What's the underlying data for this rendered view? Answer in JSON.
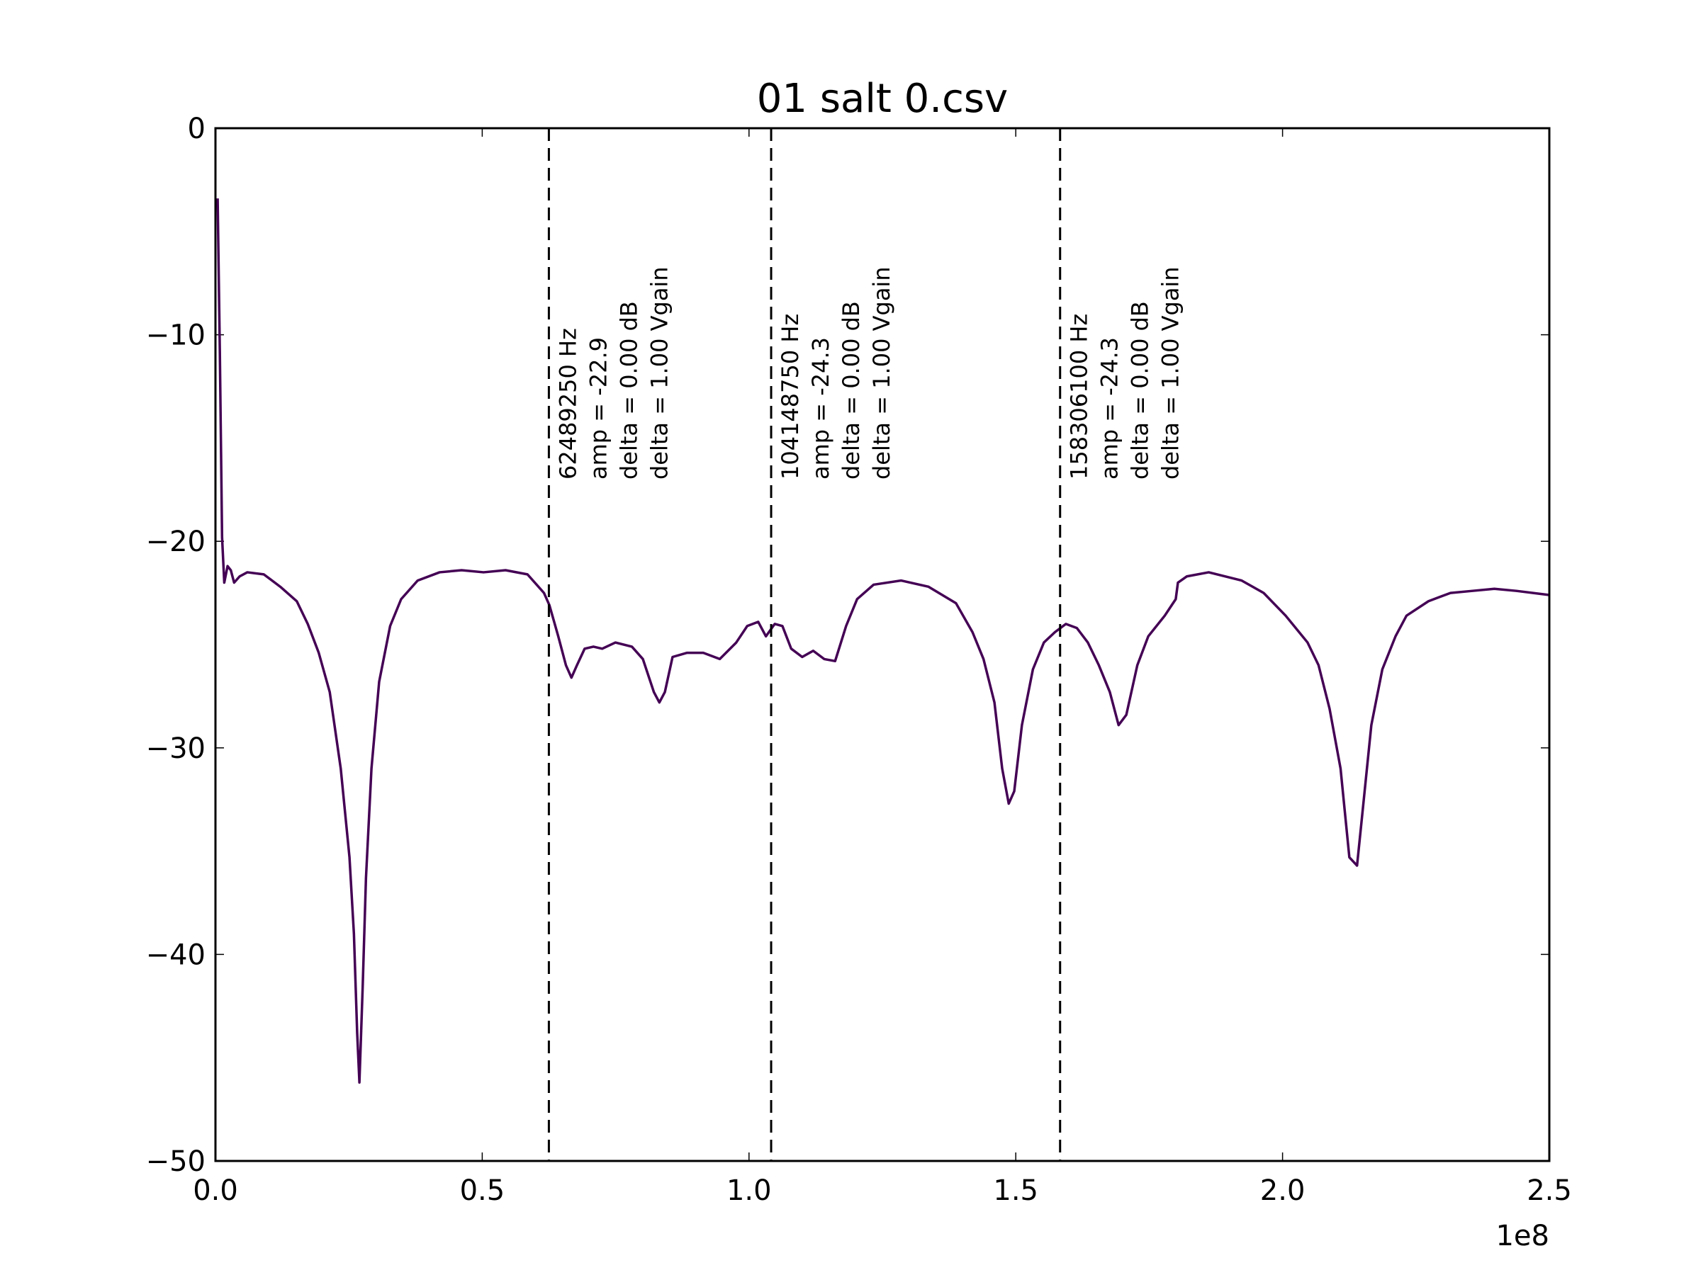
{
  "chart_data": {
    "type": "line",
    "title": "01 salt 0.csv",
    "x": [
      410000,
      820000,
      1240000,
      1650000,
      2270000,
      2880000,
      3500000,
      4530000,
      5970000,
      9060000,
      12150000,
      15240000,
      17300000,
      19360000,
      21420000,
      23480000,
      25120000,
      25950000,
      26560000,
      26980000,
      27590000,
      28210000,
      29240000,
      30680000,
      32740000,
      34800000,
      37890000,
      42010000,
      46130000,
      50250000,
      54370000,
      58480000,
      61570000,
      62600000,
      64250000,
      65690000,
      66720000,
      67750000,
      69190000,
      70840000,
      72490000,
      74960000,
      78050000,
      80110000,
      82170000,
      83200000,
      84230000,
      85670000,
      88340000,
      91430000,
      94520000,
      97610000,
      99670000,
      101730000,
      103170000,
      104820000,
      106260000,
      107910000,
      109970000,
      112030000,
      114090000,
      116140000,
      118200000,
      120260000,
      123350000,
      128500000,
      133650000,
      138800000,
      141890000,
      143950000,
      146000000,
      147450000,
      148680000,
      149710000,
      151150000,
      153210000,
      155270000,
      157330000,
      159390000,
      161450000,
      163510000,
      165570000,
      167630000,
      169270000,
      170720000,
      172780000,
      174830000,
      177920000,
      179980000,
      180390000,
      182040000,
      186160000,
      192340000,
      196460000,
      200580000,
      204690000,
      206750000,
      208810000,
      210870000,
      212520000,
      213960000,
      214990000,
      216640000,
      218700000,
      221170000,
      223230000,
      227350000,
      231470000,
      235580000,
      239700000,
      243820000,
      250000000
    ],
    "series": [
      {
        "color": "#440154",
        "values": [
          -3.4,
          -10.8,
          -19.8,
          -22.0,
          -21.2,
          -21.4,
          -22.0,
          -21.7,
          -21.5,
          -21.6,
          -22.2,
          -22.9,
          -24.0,
          -25.4,
          -27.3,
          -31.0,
          -35.3,
          -39.0,
          -43.8,
          -46.2,
          -41.6,
          -36.3,
          -31.0,
          -26.8,
          -24.1,
          -22.8,
          -21.9,
          -21.5,
          -21.4,
          -21.5,
          -21.4,
          -21.6,
          -22.5,
          -23.1,
          -24.6,
          -26.0,
          -26.6,
          -26.0,
          -25.2,
          -25.1,
          -25.2,
          -24.9,
          -25.1,
          -25.7,
          -27.3,
          -27.8,
          -27.3,
          -25.6,
          -25.4,
          -25.4,
          -25.7,
          -24.9,
          -24.1,
          -23.9,
          -24.6,
          -24.0,
          -24.1,
          -25.2,
          -25.6,
          -25.3,
          -25.7,
          -25.8,
          -24.1,
          -22.8,
          -22.1,
          -21.9,
          -22.2,
          -23.0,
          -24.4,
          -25.7,
          -27.8,
          -31.0,
          -32.7,
          -32.1,
          -28.9,
          -26.2,
          -24.9,
          -24.4,
          -24.0,
          -24.2,
          -24.9,
          -26.0,
          -27.3,
          -28.9,
          -28.4,
          -26.0,
          -24.6,
          -23.6,
          -22.8,
          -22.0,
          -21.7,
          -21.5,
          -21.9,
          -22.5,
          -23.6,
          -24.9,
          -26.0,
          -28.1,
          -31.0,
          -35.3,
          -35.7,
          -33.1,
          -28.9,
          -26.2,
          -24.6,
          -23.6,
          -22.9,
          -22.5,
          -22.4,
          -22.3,
          -22.4,
          -22.6
        ]
      }
    ],
    "xlim": [
      0,
      250000000
    ],
    "xticks": [
      {
        "value": 0,
        "label": "0.0"
      },
      {
        "value": 50000000,
        "label": "0.5"
      },
      {
        "value": 100000000,
        "label": "1.0"
      },
      {
        "value": 150000000,
        "label": "1.5"
      },
      {
        "value": 200000000,
        "label": "2.0"
      },
      {
        "value": 250000000,
        "label": "2.5"
      }
    ],
    "x_offset_label": "1e8",
    "ylim": [
      -50,
      0
    ],
    "yticks": [
      {
        "value": -50,
        "label": "−50"
      },
      {
        "value": -40,
        "label": "−40"
      },
      {
        "value": -30,
        "label": "−30"
      },
      {
        "value": -20,
        "label": "−20"
      },
      {
        "value": -10,
        "label": "−10"
      },
      0
    ],
    "annotations": [
      {
        "x": 62489250,
        "lines": [
          "62489250 Hz",
          "amp = -22.9",
          "delta = 0.00 dB",
          "delta = 1.00 Vgain"
        ]
      },
      {
        "x": 104148750,
        "lines": [
          "104148750 Hz",
          "amp = -24.3",
          "delta = 0.00 dB",
          "delta = 1.00 Vgain"
        ]
      },
      {
        "x": 158306100,
        "lines": [
          "158306100 Hz",
          "amp = -24.3",
          "delta = 0.00 dB",
          "delta = 1.00 Vgain"
        ]
      }
    ]
  }
}
